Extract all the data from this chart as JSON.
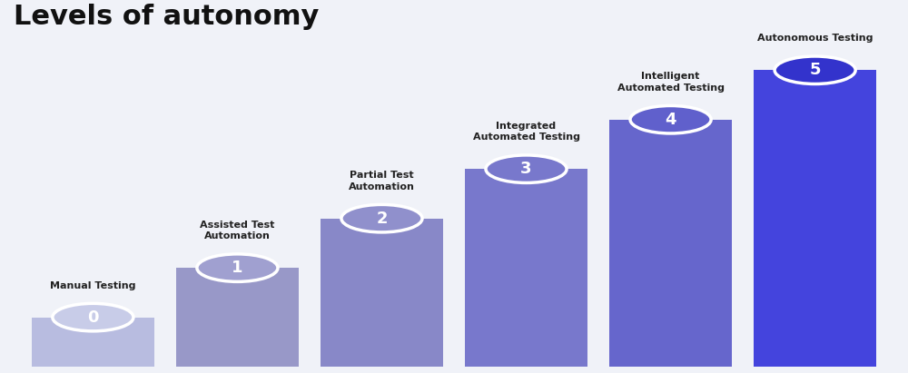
{
  "title": "Levels of autonomy",
  "background_color": "#f0f2f8",
  "title_color": "#111111",
  "title_fontsize": 22,
  "accent_bar_color": "#3b3bdb",
  "categories": [
    "Manual\nTesting",
    "Assisted Test\nAutomation",
    "Partial Test\nAutomation",
    "Integrated\nAutomated Testing",
    "Intelligent\nAutomated Testing",
    "Autonomous Testing"
  ],
  "levels": [
    "0",
    "1",
    "2",
    "3",
    "4",
    "5"
  ],
  "bar_heights": [
    1,
    2,
    3,
    4,
    5,
    6
  ],
  "bar_colors": [
    "#b0b4d8",
    "#9090c0",
    "#8888cc",
    "#7777cc",
    "#6666cc",
    "#4444dd"
  ],
  "circle_colors": [
    "#c0c4e0",
    "#9898cc",
    "#8888cc",
    "#7070cc",
    "#5555cc",
    "#3333cc"
  ],
  "circle_border_colors": [
    "#e0e4f0",
    "#b0b0d8",
    "#a0a0d0",
    "#9090cc",
    "#7070cc",
    "#5555dd"
  ],
  "label_colors": [
    "#333333",
    "#333333",
    "#333333",
    "#333333",
    "#333333",
    "#333333"
  ],
  "ylim": [
    0,
    7
  ]
}
